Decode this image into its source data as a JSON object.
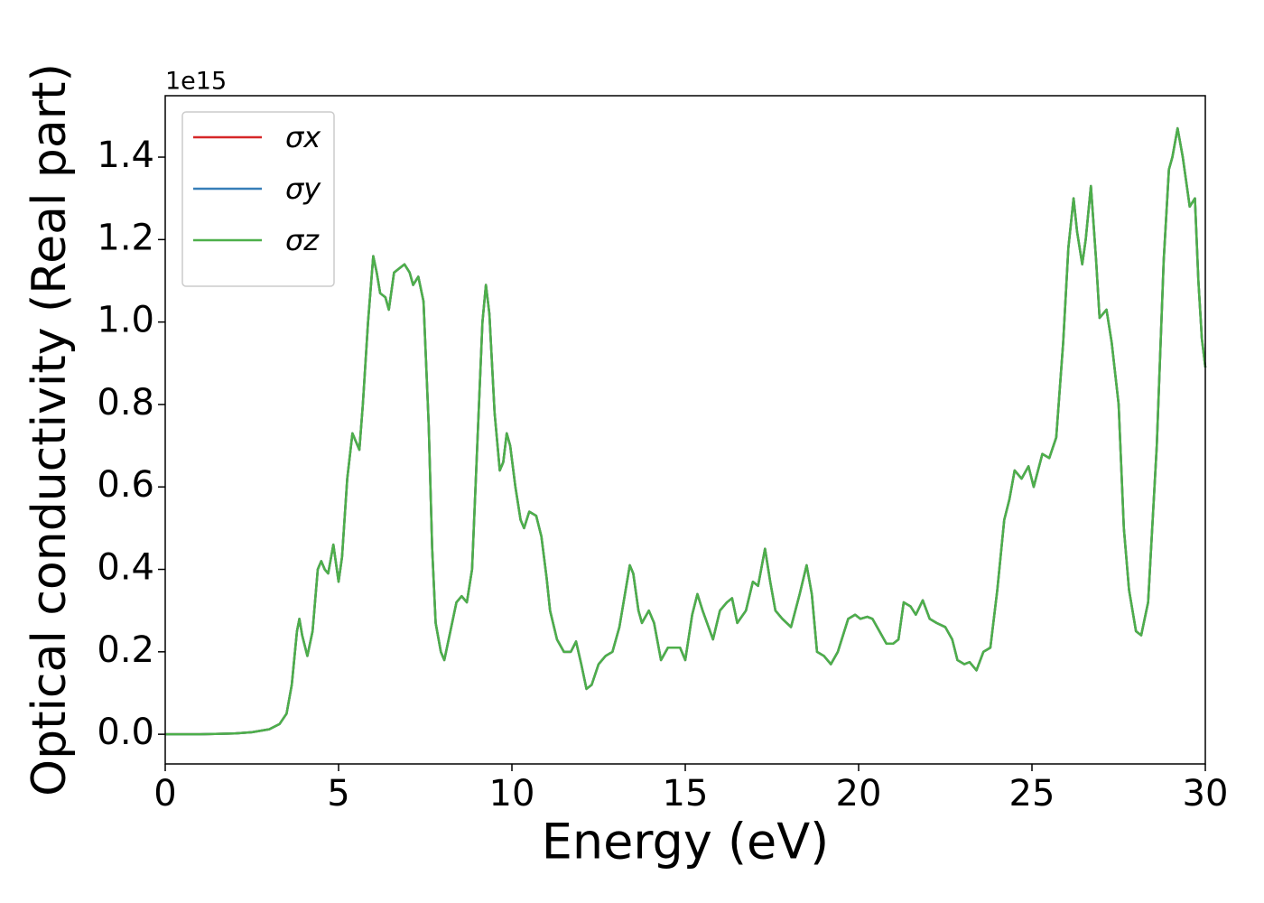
{
  "chart_data": {
    "type": "line",
    "xlabel": "Energy (eV)",
    "ylabel": "Optical conductivity (Real part)",
    "y_offset_label": "1e15",
    "xlim": [
      0,
      30
    ],
    "xticks": [
      0,
      5,
      10,
      15,
      20,
      25,
      30
    ],
    "ylim": [
      -0.072,
      1.549
    ],
    "yticks": [
      {
        "value": 0,
        "label": "0.0"
      },
      0.2,
      0.4,
      0.6,
      0.8,
      {
        "value": 1,
        "label": "1.0"
      },
      1.2,
      1.4
    ],
    "legend": "upper left",
    "grid": false,
    "x": [
      0,
      1,
      2,
      2.5,
      3,
      3.3,
      3.5,
      3.65,
      3.8,
      3.87,
      3.95,
      4.1,
      4.25,
      4.4,
      4.5,
      4.6,
      4.7,
      4.85,
      5.0,
      5.1,
      5.25,
      5.4,
      5.6,
      5.7,
      5.85,
      6.0,
      6.1,
      6.2,
      6.35,
      6.45,
      6.6,
      6.75,
      6.9,
      7.05,
      7.15,
      7.3,
      7.45,
      7.6,
      7.7,
      7.8,
      7.95,
      8.05,
      8.2,
      8.4,
      8.55,
      8.7,
      8.85,
      9.0,
      9.15,
      9.25,
      9.35,
      9.5,
      9.65,
      9.75,
      9.85,
      9.95,
      10.1,
      10.25,
      10.35,
      10.5,
      10.7,
      10.85,
      11.0,
      11.1,
      11.3,
      11.5,
      11.7,
      11.85,
      12.0,
      12.15,
      12.3,
      12.5,
      12.7,
      12.9,
      13.1,
      13.4,
      13.5,
      13.65,
      13.75,
      13.95,
      14.1,
      14.3,
      14.5,
      14.7,
      14.85,
      15.0,
      15.2,
      15.35,
      15.5,
      15.8,
      16.0,
      16.2,
      16.35,
      16.5,
      16.75,
      16.95,
      17.1,
      17.3,
      17.45,
      17.6,
      17.8,
      18.05,
      18.3,
      18.5,
      18.65,
      18.8,
      19.0,
      19.2,
      19.4,
      19.7,
      19.9,
      20.05,
      20.25,
      20.4,
      20.6,
      20.8,
      21.0,
      21.15,
      21.3,
      21.5,
      21.65,
      21.85,
      22.05,
      22.25,
      22.5,
      22.7,
      22.85,
      23.05,
      23.2,
      23.4,
      23.6,
      23.8,
      24.0,
      24.2,
      24.35,
      24.5,
      24.7,
      24.9,
      25.05,
      25.3,
      25.5,
      25.7,
      25.9,
      26.05,
      26.2,
      26.3,
      26.45,
      26.55,
      26.7,
      26.85,
      26.95,
      27.15,
      27.3,
      27.5,
      27.65,
      27.8,
      28.0,
      28.15,
      28.35,
      28.6,
      28.8,
      28.95,
      29.05,
      29.2,
      29.35,
      29.55,
      29.7,
      29.8,
      29.9,
      30.0
    ],
    "series": [
      {
        "name": "σx",
        "color": "#d62728",
        "values": [
          0,
          0,
          0.002,
          0.005,
          0.012,
          0.025,
          0.05,
          0.12,
          0.25,
          0.28,
          0.24,
          0.19,
          0.25,
          0.4,
          0.42,
          0.4,
          0.39,
          0.46,
          0.37,
          0.43,
          0.62,
          0.73,
          0.69,
          0.8,
          1.0,
          1.16,
          1.12,
          1.07,
          1.06,
          1.03,
          1.12,
          1.13,
          1.14,
          1.12,
          1.09,
          1.11,
          1.05,
          0.75,
          0.45,
          0.27,
          0.2,
          0.18,
          0.24,
          0.32,
          0.335,
          0.32,
          0.4,
          0.7,
          1.0,
          1.09,
          1.02,
          0.78,
          0.64,
          0.66,
          0.73,
          0.7,
          0.6,
          0.52,
          0.5,
          0.54,
          0.53,
          0.48,
          0.38,
          0.3,
          0.23,
          0.2,
          0.2,
          0.225,
          0.17,
          0.11,
          0.12,
          0.17,
          0.19,
          0.2,
          0.26,
          0.41,
          0.39,
          0.3,
          0.27,
          0.3,
          0.27,
          0.18,
          0.21,
          0.21,
          0.21,
          0.18,
          0.29,
          0.34,
          0.3,
          0.23,
          0.3,
          0.32,
          0.33,
          0.27,
          0.3,
          0.37,
          0.36,
          0.45,
          0.37,
          0.3,
          0.28,
          0.26,
          0.34,
          0.41,
          0.34,
          0.2,
          0.19,
          0.17,
          0.2,
          0.28,
          0.29,
          0.28,
          0.285,
          0.28,
          0.25,
          0.22,
          0.22,
          0.23,
          0.32,
          0.31,
          0.29,
          0.325,
          0.28,
          0.27,
          0.26,
          0.23,
          0.18,
          0.17,
          0.175,
          0.155,
          0.2,
          0.21,
          0.35,
          0.52,
          0.57,
          0.64,
          0.62,
          0.65,
          0.6,
          0.68,
          0.67,
          0.72,
          0.95,
          1.18,
          1.3,
          1.22,
          1.14,
          1.2,
          1.33,
          1.15,
          1.01,
          1.03,
          0.95,
          0.8,
          0.5,
          0.35,
          0.25,
          0.24,
          0.32,
          0.7,
          1.15,
          1.37,
          1.4,
          1.47,
          1.4,
          1.28,
          1.3,
          1.1,
          0.96,
          0.89
        ]
      },
      {
        "name": "σy",
        "color": "#377eb8",
        "values": [
          0,
          0,
          0.002,
          0.005,
          0.012,
          0.025,
          0.05,
          0.12,
          0.25,
          0.28,
          0.24,
          0.19,
          0.25,
          0.4,
          0.42,
          0.4,
          0.39,
          0.46,
          0.37,
          0.43,
          0.62,
          0.73,
          0.69,
          0.8,
          1.0,
          1.16,
          1.12,
          1.07,
          1.06,
          1.03,
          1.12,
          1.13,
          1.14,
          1.12,
          1.09,
          1.11,
          1.05,
          0.75,
          0.45,
          0.27,
          0.2,
          0.18,
          0.24,
          0.32,
          0.335,
          0.32,
          0.4,
          0.7,
          1.0,
          1.09,
          1.02,
          0.78,
          0.64,
          0.66,
          0.73,
          0.7,
          0.6,
          0.52,
          0.5,
          0.54,
          0.53,
          0.48,
          0.38,
          0.3,
          0.23,
          0.2,
          0.2,
          0.225,
          0.17,
          0.11,
          0.12,
          0.17,
          0.19,
          0.2,
          0.26,
          0.41,
          0.39,
          0.3,
          0.27,
          0.3,
          0.27,
          0.18,
          0.21,
          0.21,
          0.21,
          0.18,
          0.29,
          0.34,
          0.3,
          0.23,
          0.3,
          0.32,
          0.33,
          0.27,
          0.3,
          0.37,
          0.36,
          0.45,
          0.37,
          0.3,
          0.28,
          0.26,
          0.34,
          0.41,
          0.34,
          0.2,
          0.19,
          0.17,
          0.2,
          0.28,
          0.29,
          0.28,
          0.285,
          0.28,
          0.25,
          0.22,
          0.22,
          0.23,
          0.32,
          0.31,
          0.29,
          0.325,
          0.28,
          0.27,
          0.26,
          0.23,
          0.18,
          0.17,
          0.175,
          0.155,
          0.2,
          0.21,
          0.35,
          0.52,
          0.57,
          0.64,
          0.62,
          0.65,
          0.6,
          0.68,
          0.67,
          0.72,
          0.95,
          1.18,
          1.3,
          1.22,
          1.14,
          1.2,
          1.33,
          1.15,
          1.01,
          1.03,
          0.95,
          0.8,
          0.5,
          0.35,
          0.25,
          0.24,
          0.32,
          0.7,
          1.15,
          1.37,
          1.4,
          1.47,
          1.4,
          1.28,
          1.3,
          1.1,
          0.96,
          0.89
        ]
      },
      {
        "name": "σz",
        "color": "#4daf4a",
        "values": [
          0,
          0,
          0.002,
          0.005,
          0.012,
          0.025,
          0.05,
          0.12,
          0.25,
          0.28,
          0.24,
          0.19,
          0.25,
          0.4,
          0.42,
          0.4,
          0.39,
          0.46,
          0.37,
          0.43,
          0.62,
          0.73,
          0.69,
          0.8,
          1.0,
          1.16,
          1.12,
          1.07,
          1.06,
          1.03,
          1.12,
          1.13,
          1.14,
          1.12,
          1.09,
          1.11,
          1.05,
          0.75,
          0.45,
          0.27,
          0.2,
          0.18,
          0.24,
          0.32,
          0.335,
          0.32,
          0.4,
          0.7,
          1.0,
          1.09,
          1.02,
          0.78,
          0.64,
          0.66,
          0.73,
          0.7,
          0.6,
          0.52,
          0.5,
          0.54,
          0.53,
          0.48,
          0.38,
          0.3,
          0.23,
          0.2,
          0.2,
          0.225,
          0.17,
          0.11,
          0.12,
          0.17,
          0.19,
          0.2,
          0.26,
          0.41,
          0.39,
          0.3,
          0.27,
          0.3,
          0.27,
          0.18,
          0.21,
          0.21,
          0.21,
          0.18,
          0.29,
          0.34,
          0.3,
          0.23,
          0.3,
          0.32,
          0.33,
          0.27,
          0.3,
          0.37,
          0.36,
          0.45,
          0.37,
          0.3,
          0.28,
          0.26,
          0.34,
          0.41,
          0.34,
          0.2,
          0.19,
          0.17,
          0.2,
          0.28,
          0.29,
          0.28,
          0.285,
          0.28,
          0.25,
          0.22,
          0.22,
          0.23,
          0.32,
          0.31,
          0.29,
          0.325,
          0.28,
          0.27,
          0.26,
          0.23,
          0.18,
          0.17,
          0.175,
          0.155,
          0.2,
          0.21,
          0.35,
          0.52,
          0.57,
          0.64,
          0.62,
          0.65,
          0.6,
          0.68,
          0.67,
          0.72,
          0.95,
          1.18,
          1.3,
          1.22,
          1.14,
          1.2,
          1.33,
          1.15,
          1.01,
          1.03,
          0.95,
          0.8,
          0.5,
          0.35,
          0.25,
          0.24,
          0.32,
          0.7,
          1.15,
          1.37,
          1.4,
          1.47,
          1.4,
          1.28,
          1.3,
          1.1,
          0.96,
          0.89
        ]
      }
    ]
  }
}
